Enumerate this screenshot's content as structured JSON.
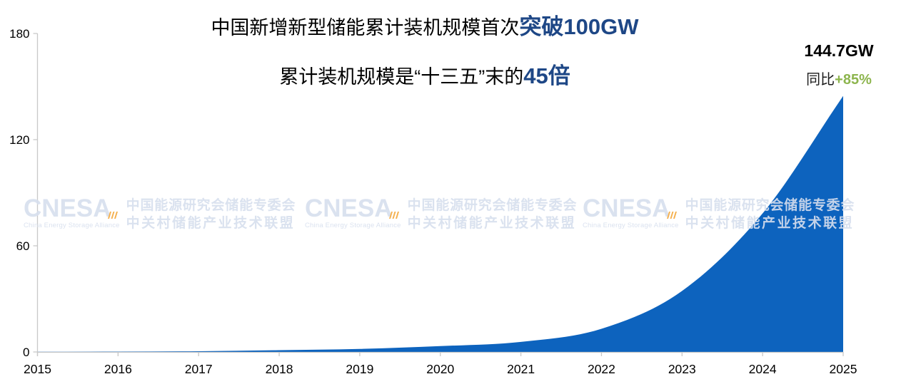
{
  "title": {
    "line1_plain": "中国新增新型储能累计装机规模首次",
    "line1_accent": "突破100GW",
    "line2_plain": "累计装机规模是“十三五”末的",
    "line2_accent": "45倍"
  },
  "annotation": {
    "value": "144.7GW",
    "yoy_label": "同比",
    "yoy_value": "+85%"
  },
  "watermark": {
    "logo": "CNESA",
    "logo_sub": "China Energy Storage Alliance",
    "cn_line1": "中国能源研究会储能专委会",
    "cn_line2": "中关村储能产业技术联盟"
  },
  "colors": {
    "area_fill": "#0D63BE",
    "title_accent": "#1E4786",
    "yoy_green": "#8DB54E",
    "watermark": "#D7DFEE",
    "watermark_orange": "#F4A93C",
    "axis_line": "#C8C8C8",
    "text": "#000000"
  },
  "chart_data": {
    "type": "area",
    "x": [
      2015,
      2016,
      2017,
      2018,
      2019,
      2020,
      2021,
      2022,
      2023,
      2024,
      2025
    ],
    "values": [
      0.1,
      0.2,
      0.4,
      1.0,
      1.7,
      3.3,
      5.7,
      13.1,
      34.5,
      78.3,
      144.7
    ],
    "title": "中国新增新型储能累计装机规模首次突破100GW",
    "subtitle": "累计装机规模是“十三五”末的45倍",
    "ylabel": "",
    "xlabel": "",
    "ylim": [
      0,
      180
    ],
    "yticks": [
      0,
      60,
      120,
      180
    ],
    "grid": false,
    "legend": "none",
    "smooth": true,
    "annotations": [
      "144.7GW",
      "同比+85%"
    ]
  }
}
